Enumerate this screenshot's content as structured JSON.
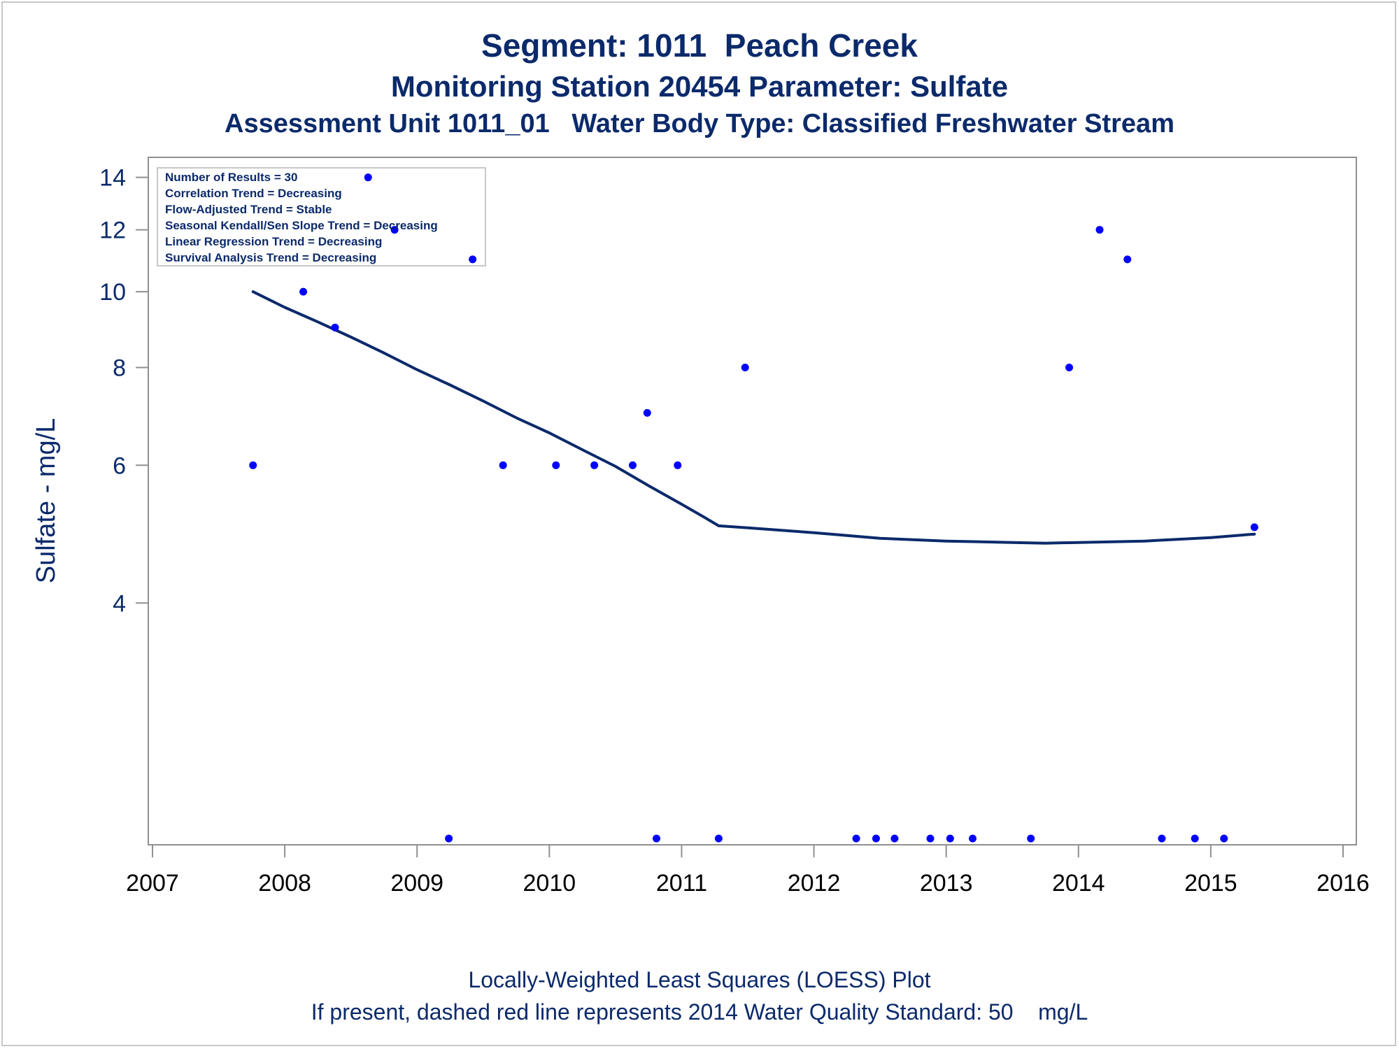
{
  "titles": {
    "line1": "Segment: 1011  Peach Creek",
    "line2": "Monitoring Station 20454 Parameter: Sulfate",
    "line3": "Assessment Unit 1011_01   Water Body Type: Classified Freshwater Stream"
  },
  "footnotes": {
    "line1": "Locally-Weighted Least Squares (LOESS) Plot",
    "line2": "If present, dashed red line represents 2014 Water Quality Standard: 50    mg/L"
  },
  "inset": {
    "lines": [
      "Number of Results = 30",
      "Correlation Trend = Decreasing",
      "Flow-Adjusted Trend = Stable",
      "Seasonal Kendall/Sen Slope Trend = Decreasing",
      "Linear Regression Trend = Decreasing",
      "Survival Analysis Trend = Decreasing"
    ]
  },
  "colors": {
    "text": "#0b2a6b",
    "points": "#0000ff",
    "loess": "#0b2a6b",
    "axis": "#909090"
  },
  "chart_data": {
    "type": "scatter",
    "title": "Segment: 1011  Peach Creek",
    "xlabel": "",
    "ylabel": "Sulfate - mg/L",
    "yscale": "log",
    "xlim": [
      2007,
      2016
    ],
    "ylim": [
      2.0,
      14.4
    ],
    "x_ticks": [
      2007,
      2008,
      2009,
      2010,
      2011,
      2012,
      2013,
      2014,
      2015,
      2016
    ],
    "y_ticks": [
      4,
      6,
      8,
      10,
      12,
      14
    ],
    "series": [
      {
        "kind": "points",
        "points": [
          {
            "x": 2007.76,
            "y": 6
          },
          {
            "x": 2008.14,
            "y": 10
          },
          {
            "x": 2008.38,
            "y": 9
          },
          {
            "x": 2008.63,
            "y": 14
          },
          {
            "x": 2008.83,
            "y": 12
          },
          {
            "x": 2009.24,
            "y": 2
          },
          {
            "x": 2009.42,
            "y": 11
          },
          {
            "x": 2009.65,
            "y": 6
          },
          {
            "x": 2010.05,
            "y": 6
          },
          {
            "x": 2010.34,
            "y": 6
          },
          {
            "x": 2010.63,
            "y": 6
          },
          {
            "x": 2010.74,
            "y": 7
          },
          {
            "x": 2010.81,
            "y": 2
          },
          {
            "x": 2010.97,
            "y": 6
          },
          {
            "x": 2011.28,
            "y": 2
          },
          {
            "x": 2011.48,
            "y": 8
          },
          {
            "x": 2012.32,
            "y": 2
          },
          {
            "x": 2012.47,
            "y": 2
          },
          {
            "x": 2012.61,
            "y": 2
          },
          {
            "x": 2012.88,
            "y": 2
          },
          {
            "x": 2013.03,
            "y": 2
          },
          {
            "x": 2013.2,
            "y": 2
          },
          {
            "x": 2013.64,
            "y": 2
          },
          {
            "x": 2013.93,
            "y": 8
          },
          {
            "x": 2014.16,
            "y": 12
          },
          {
            "x": 2014.37,
            "y": 11
          },
          {
            "x": 2014.63,
            "y": 2
          },
          {
            "x": 2014.88,
            "y": 2
          },
          {
            "x": 2015.1,
            "y": 2
          },
          {
            "x": 2015.33,
            "y": 5
          }
        ]
      },
      {
        "kind": "loess",
        "points": [
          {
            "x": 2007.76,
            "y": 10.0
          },
          {
            "x": 2008.0,
            "y": 9.55
          },
          {
            "x": 2008.25,
            "y": 9.15
          },
          {
            "x": 2008.5,
            "y": 8.75
          },
          {
            "x": 2008.75,
            "y": 8.35
          },
          {
            "x": 2009.0,
            "y": 7.95
          },
          {
            "x": 2009.25,
            "y": 7.6
          },
          {
            "x": 2009.5,
            "y": 7.25
          },
          {
            "x": 2009.75,
            "y": 6.9
          },
          {
            "x": 2010.0,
            "y": 6.6
          },
          {
            "x": 2010.25,
            "y": 6.28
          },
          {
            "x": 2010.5,
            "y": 5.98
          },
          {
            "x": 2010.75,
            "y": 5.65
          },
          {
            "x": 2011.0,
            "y": 5.35
          },
          {
            "x": 2011.17,
            "y": 5.15
          },
          {
            "x": 2011.28,
            "y": 5.02
          },
          {
            "x": 2011.5,
            "y": 4.99
          },
          {
            "x": 2012.0,
            "y": 4.92
          },
          {
            "x": 2012.5,
            "y": 4.84
          },
          {
            "x": 2013.0,
            "y": 4.8
          },
          {
            "x": 2013.5,
            "y": 4.78
          },
          {
            "x": 2013.75,
            "y": 4.77
          },
          {
            "x": 2014.0,
            "y": 4.78
          },
          {
            "x": 2014.5,
            "y": 4.8
          },
          {
            "x": 2015.0,
            "y": 4.85
          },
          {
            "x": 2015.33,
            "y": 4.9
          }
        ]
      }
    ]
  }
}
